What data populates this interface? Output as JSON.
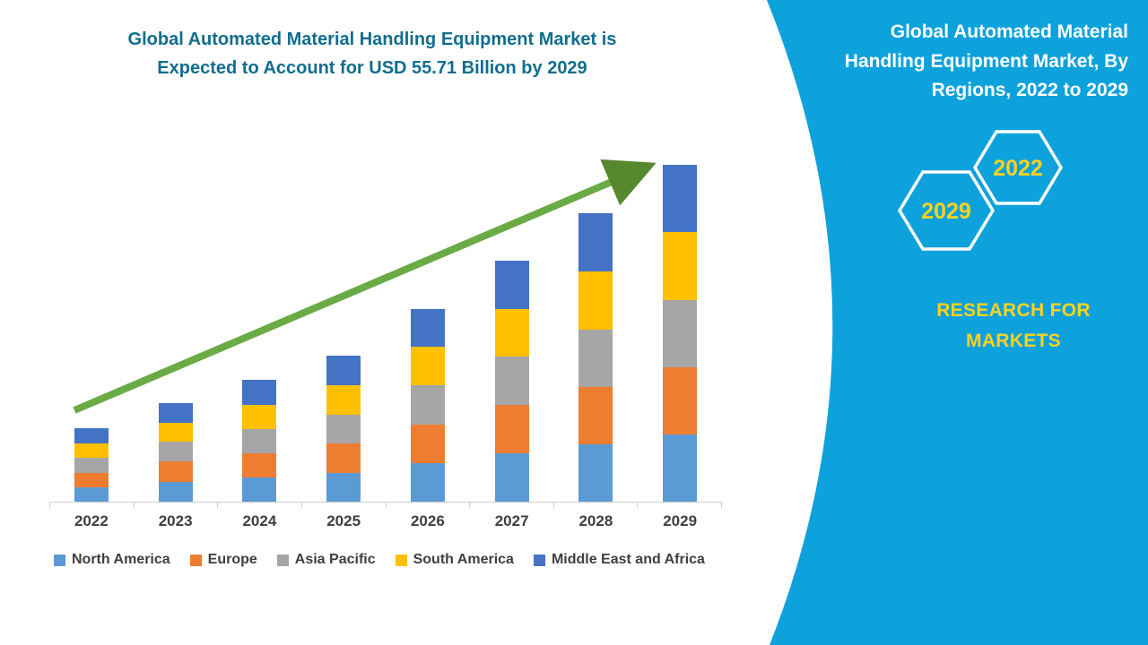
{
  "left_title": {
    "line1": "Global Automated Material Handling Equipment Market is",
    "line2": "Expected to Account for USD 55.71 Billion by 2029"
  },
  "right_panel": {
    "background_color": "#0da2dc",
    "title_lines": [
      "Global Automated Material",
      "Handling Equipment Market, By",
      "Regions, 2022 to 2029"
    ],
    "hexagons": [
      {
        "label": "2029"
      },
      {
        "label": "2022"
      }
    ],
    "brand_lines": [
      "RESEARCH FOR",
      "MARKETS"
    ],
    "accent_color": "#ffd21f"
  },
  "chart_data": {
    "type": "bar",
    "stacked": true,
    "title": "Global Automated Material Handling Equipment Market is Expected to Account for USD 55.71 Billion by 2029",
    "unit": "USD Billion",
    "categories": [
      "2022",
      "2023",
      "2024",
      "2025",
      "2026",
      "2027",
      "2028",
      "2029"
    ],
    "series": [
      {
        "name": "North America",
        "color": "#5B9BD5",
        "values": [
          2.4,
          3.3,
          4.0,
          4.8,
          6.4,
          8.0,
          9.5,
          11.1
        ]
      },
      {
        "name": "Europe",
        "color": "#ED7D31",
        "values": [
          2.4,
          3.3,
          4.0,
          4.8,
          6.4,
          8.0,
          9.5,
          11.1
        ]
      },
      {
        "name": "Asia Pacific",
        "color": "#A6A6A6",
        "values": [
          2.4,
          3.3,
          4.0,
          4.8,
          6.4,
          8.0,
          9.5,
          11.2
        ]
      },
      {
        "name": "South America",
        "color": "#FFC000",
        "values": [
          2.4,
          3.2,
          4.0,
          4.9,
          6.4,
          7.9,
          9.6,
          11.2
        ]
      },
      {
        "name": "Middle East and Africa",
        "color": "#4472C4",
        "values": [
          2.5,
          3.2,
          4.1,
          4.9,
          6.3,
          7.9,
          9.6,
          11.11
        ]
      }
    ],
    "totals_estimated": [
      12.1,
      16.3,
      20.1,
      24.2,
      31.9,
      39.8,
      47.7,
      55.71
    ],
    "ylim": [
      0,
      60
    ],
    "gridlines": false,
    "legend_position": "bottom",
    "trend_arrow": {
      "present": true,
      "color": "#6aab45"
    }
  }
}
